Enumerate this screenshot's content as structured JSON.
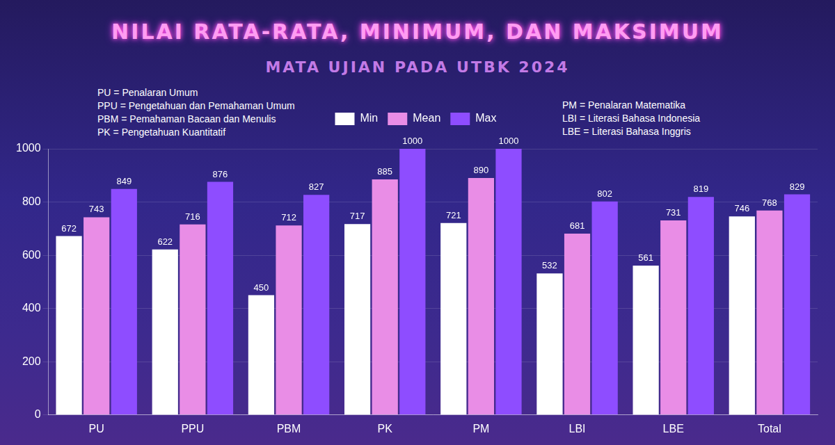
{
  "chart_data": {
    "type": "bar",
    "title": "NILAI RATA-RATA, MINIMUM, DAN MAKSIMUM",
    "subtitle": "MATA UJIAN PADA UTBK 2024",
    "annotations": [
      [
        "PU = Penalaran Umum",
        "PPU = Pengetahuan dan Pemahaman Umum",
        "PBM = Pemahaman Bacaan dan Menulis",
        "PK = Pengetahuan Kuantitatif"
      ],
      [
        "PM = Penalaran Matematika",
        "LBI = Literasi Bahasa Indonesia",
        "LBE = Literasi Bahasa Inggris"
      ]
    ],
    "categories": [
      "PU",
      "PPU",
      "PBM",
      "PK",
      "PM",
      "LBI",
      "LBE",
      "Total"
    ],
    "series": [
      {
        "name": "Min",
        "color": "#ffffff",
        "values": [
          672,
          622,
          450,
          717,
          721,
          532,
          561,
          746
        ]
      },
      {
        "name": "Mean",
        "color": "#e98de6",
        "values": [
          743,
          716,
          712,
          885,
          890,
          681,
          731,
          768
        ]
      },
      {
        "name": "Max",
        "color": "#8e4dff",
        "values": [
          849,
          876,
          827,
          1000,
          1000,
          802,
          819,
          829
        ]
      }
    ],
    "ylim": [
      0,
      1000
    ],
    "yticks": [
      0,
      200,
      400,
      600,
      800,
      1000
    ],
    "grid": true,
    "legend": "top",
    "data_labels": true
  }
}
